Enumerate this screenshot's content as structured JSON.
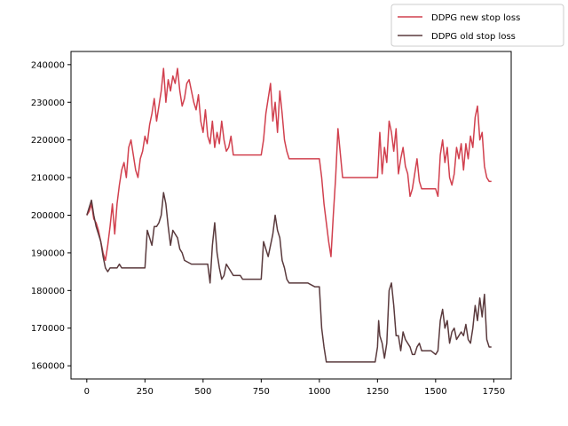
{
  "chart_data": {
    "type": "line",
    "title": "",
    "xlabel": "",
    "ylabel": "",
    "xlim": [
      -68,
      1825
    ],
    "ylim": [
      156500,
      243500
    ],
    "xticks": [
      0,
      250,
      500,
      750,
      1000,
      1250,
      1500,
      1750
    ],
    "yticks": [
      160000,
      170000,
      180000,
      190000,
      200000,
      210000,
      220000,
      230000,
      240000
    ],
    "grid": false,
    "legend_position": "top-right, outside plot",
    "series": [
      {
        "name": "DDPG new stop loss",
        "color": "#d1404e",
        "x": [
          0,
          10,
          20,
          30,
          40,
          50,
          60,
          70,
          80,
          90,
          100,
          110,
          120,
          130,
          140,
          150,
          160,
          170,
          180,
          190,
          200,
          210,
          220,
          230,
          240,
          250,
          260,
          270,
          280,
          290,
          300,
          310,
          320,
          330,
          340,
          350,
          360,
          370,
          380,
          390,
          400,
          410,
          420,
          430,
          440,
          450,
          460,
          470,
          480,
          490,
          500,
          510,
          520,
          530,
          540,
          550,
          560,
          570,
          580,
          590,
          600,
          610,
          620,
          630,
          640,
          700,
          750,
          760,
          770,
          780,
          790,
          800,
          810,
          820,
          830,
          840,
          850,
          860,
          870,
          880,
          900,
          950,
          990,
          1000,
          1010,
          1020,
          1030,
          1040,
          1050,
          1060,
          1070,
          1080,
          1100,
          1150,
          1200,
          1240,
          1250,
          1260,
          1270,
          1280,
          1290,
          1300,
          1310,
          1320,
          1330,
          1340,
          1350,
          1360,
          1370,
          1380,
          1390,
          1400,
          1410,
          1420,
          1430,
          1440,
          1460,
          1480,
          1500,
          1510,
          1520,
          1530,
          1540,
          1550,
          1560,
          1570,
          1580,
          1590,
          1600,
          1610,
          1620,
          1630,
          1640,
          1650,
          1660,
          1670,
          1680,
          1690,
          1700,
          1710,
          1720,
          1730,
          1740
        ],
        "values": [
          200000,
          201000,
          203000,
          199000,
          198000,
          196000,
          193000,
          190000,
          188000,
          192000,
          197000,
          203000,
          195000,
          203000,
          208000,
          212000,
          214000,
          210000,
          218000,
          220000,
          216000,
          212000,
          210000,
          215000,
          217000,
          221000,
          219000,
          224000,
          227000,
          231000,
          225000,
          229000,
          233000,
          239000,
          230000,
          236000,
          233000,
          237000,
          235000,
          239000,
          233000,
          229000,
          231000,
          235000,
          236000,
          233000,
          230000,
          228000,
          232000,
          225000,
          222000,
          228000,
          221000,
          219000,
          225000,
          218000,
          222000,
          219000,
          225000,
          220000,
          217000,
          218000,
          221000,
          216000,
          216000,
          216000,
          216000,
          220000,
          227000,
          231000,
          235000,
          225000,
          230000,
          222000,
          233000,
          227000,
          220000,
          217000,
          215000,
          215000,
          215000,
          215000,
          215000,
          215000,
          210000,
          203000,
          198000,
          193000,
          189000,
          200000,
          210000,
          223000,
          210000,
          210000,
          210000,
          210000,
          210000,
          222000,
          211000,
          218000,
          214000,
          225000,
          222000,
          217000,
          223000,
          211000,
          215000,
          218000,
          213000,
          211000,
          205000,
          207000,
          211000,
          215000,
          209000,
          207000,
          207000,
          207000,
          207000,
          205000,
          216000,
          220000,
          214000,
          218000,
          210000,
          208000,
          211000,
          218000,
          215000,
          219000,
          212000,
          219000,
          215000,
          221000,
          218000,
          226000,
          229000,
          220000,
          222000,
          213000,
          210000,
          209000,
          209000
        ]
      },
      {
        "name": "DDPG old stop loss",
        "color": "#5a3a3d",
        "x": [
          0,
          10,
          20,
          30,
          40,
          50,
          60,
          70,
          80,
          90,
          100,
          110,
          120,
          130,
          140,
          150,
          160,
          170,
          180,
          190,
          200,
          250,
          260,
          270,
          280,
          290,
          300,
          310,
          320,
          330,
          340,
          350,
          360,
          370,
          380,
          390,
          400,
          410,
          420,
          450,
          500,
          520,
          530,
          540,
          550,
          560,
          570,
          580,
          590,
          600,
          610,
          620,
          630,
          640,
          650,
          660,
          670,
          680,
          700,
          750,
          760,
          770,
          780,
          790,
          800,
          810,
          820,
          830,
          840,
          850,
          860,
          870,
          880,
          900,
          950,
          980,
          1000,
          1010,
          1020,
          1030,
          1050,
          1100,
          1150,
          1200,
          1240,
          1250,
          1255,
          1260,
          1270,
          1280,
          1290,
          1300,
          1310,
          1320,
          1330,
          1340,
          1350,
          1360,
          1370,
          1380,
          1390,
          1400,
          1410,
          1420,
          1430,
          1440,
          1460,
          1480,
          1500,
          1510,
          1520,
          1530,
          1540,
          1550,
          1560,
          1570,
          1580,
          1590,
          1600,
          1610,
          1620,
          1630,
          1640,
          1650,
          1660,
          1670,
          1680,
          1690,
          1700,
          1710,
          1720,
          1730,
          1740
        ],
        "values": [
          200000,
          202000,
          204000,
          200000,
          197000,
          195000,
          193000,
          189000,
          186000,
          185000,
          186000,
          186000,
          186000,
          186000,
          187000,
          186000,
          186000,
          186000,
          186000,
          186000,
          186000,
          186000,
          196000,
          194000,
          192000,
          197000,
          197000,
          198000,
          200000,
          206000,
          203000,
          197000,
          192000,
          196000,
          195000,
          194000,
          191000,
          190000,
          188000,
          187000,
          187000,
          187000,
          182000,
          192000,
          198000,
          190000,
          186000,
          183000,
          184000,
          187000,
          186000,
          185000,
          184000,
          184000,
          184000,
          184000,
          183000,
          183000,
          183000,
          183000,
          193000,
          191000,
          189000,
          192000,
          195000,
          200000,
          196000,
          194000,
          188000,
          186000,
          183000,
          182000,
          182000,
          182000,
          182000,
          181000,
          181000,
          170000,
          165000,
          161000,
          161000,
          161000,
          161000,
          161000,
          161000,
          165000,
          172000,
          168000,
          166000,
          162000,
          166000,
          180000,
          182000,
          176000,
          168000,
          168000,
          164000,
          169000,
          167000,
          166000,
          165000,
          163000,
          163000,
          165000,
          166000,
          164000,
          164000,
          164000,
          163000,
          164000,
          172000,
          175000,
          170000,
          172000,
          166000,
          169000,
          170000,
          167000,
          168000,
          169000,
          168000,
          171000,
          167000,
          166000,
          170000,
          176000,
          172000,
          178000,
          173000,
          179000,
          167000,
          165000,
          165000
        ]
      }
    ]
  }
}
